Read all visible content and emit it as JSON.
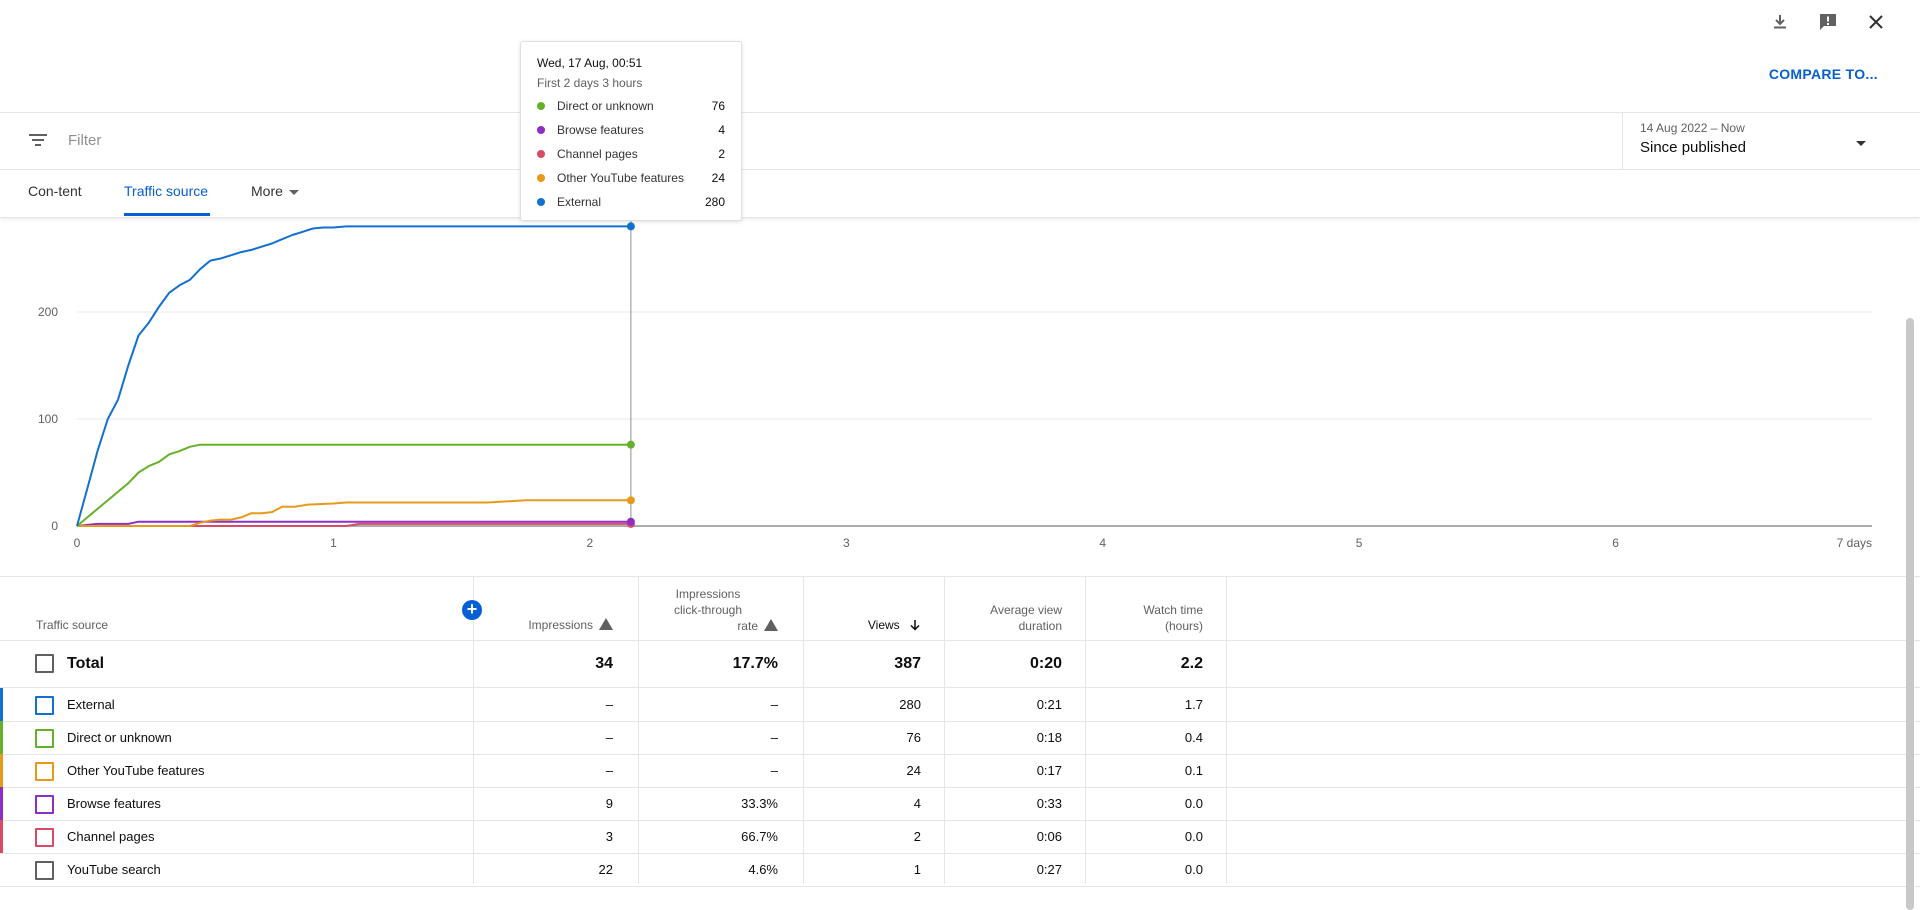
{
  "header": {
    "compare_label": "COMPARE TO...",
    "icons": [
      "download-icon",
      "feedback-icon",
      "close-icon"
    ]
  },
  "filter": {
    "placeholder": "Filter"
  },
  "date": {
    "range": "14 Aug 2022 – Now",
    "label": "Since published"
  },
  "tabs": [
    {
      "label": "Con-tent"
    },
    {
      "label": "Traffic source"
    },
    {
      "label": "More"
    }
  ],
  "tooltip": {
    "title": "Wed, 17 Aug, 00:51",
    "subtitle": "First 2 days 3 hours",
    "rows": [
      {
        "name": "Direct or unknown",
        "value": "76",
        "color": "#65b12b"
      },
      {
        "name": "Browse features",
        "value": "4",
        "color": "#8e2ec7"
      },
      {
        "name": "Channel pages",
        "value": "2",
        "color": "#d94a66"
      },
      {
        "name": "Other YouTube features",
        "value": "24",
        "color": "#e79a1a"
      },
      {
        "name": "External",
        "value": "280",
        "color": "#1170d0"
      }
    ]
  },
  "chart_data": {
    "type": "line",
    "x_ticks": [
      "0",
      "1",
      "2",
      "3",
      "4",
      "5",
      "6",
      "7 days"
    ],
    "y_ticks": [
      "0",
      "100",
      "200"
    ],
    "xlim": [
      0,
      7
    ],
    "ylim": [
      0,
      300
    ],
    "hover_x": 2.16,
    "series": [
      {
        "name": "External",
        "color": "#1170d0",
        "x": [
          0,
          0.04,
          0.08,
          0.12,
          0.16,
          0.2,
          0.24,
          0.28,
          0.32,
          0.36,
          0.4,
          0.44,
          0.48,
          0.52,
          0.56,
          0.6,
          0.64,
          0.68,
          0.72,
          0.76,
          0.8,
          0.84,
          0.88,
          0.92,
          0.96,
          1.0,
          1.05,
          1.2,
          1.5,
          2.16
        ],
        "y": [
          0,
          35,
          70,
          100,
          118,
          150,
          178,
          190,
          205,
          218,
          225,
          230,
          240,
          248,
          250,
          253,
          256,
          258,
          261,
          264,
          268,
          272,
          275,
          278,
          279,
          279,
          280,
          280,
          280,
          280
        ]
      },
      {
        "name": "Direct or unknown",
        "color": "#65b12b",
        "x": [
          0,
          0.1,
          0.2,
          0.24,
          0.28,
          0.32,
          0.36,
          0.4,
          0.44,
          0.48,
          2.16
        ],
        "y": [
          0,
          20,
          40,
          50,
          56,
          60,
          67,
          70,
          74,
          76,
          76
        ]
      },
      {
        "name": "Other YouTube features",
        "color": "#e79a1a",
        "x": [
          0,
          0.44,
          0.48,
          0.52,
          0.56,
          0.6,
          0.64,
          0.68,
          0.72,
          0.76,
          0.8,
          0.85,
          0.9,
          1.0,
          1.05,
          1.6,
          1.75,
          2.16
        ],
        "y": [
          0,
          0,
          3,
          5,
          6,
          6,
          8,
          12,
          12,
          13,
          18,
          18,
          20,
          21,
          22,
          22,
          24,
          24
        ]
      },
      {
        "name": "Browse features",
        "color": "#8e2ec7",
        "x": [
          0,
          0.08,
          0.2,
          0.24,
          2.16
        ],
        "y": [
          0,
          2,
          2,
          4,
          4
        ]
      },
      {
        "name": "Channel pages",
        "color": "#d94a66",
        "x": [
          0,
          1.05,
          1.1,
          2.16
        ],
        "y": [
          0,
          0,
          2,
          2
        ]
      }
    ]
  },
  "table": {
    "headers": {
      "source": "Traffic source",
      "impressions": "Impressions",
      "ctr_line1": "Impressions",
      "ctr_line2": "click-through",
      "ctr_line3": "rate",
      "views": "Views",
      "avd_line1": "Average view",
      "avd_line2": "duration",
      "wt_line1": "Watch time",
      "wt_line2": "(hours)"
    },
    "total": {
      "name": "Total",
      "impressions": "34",
      "ctr": "17.7%",
      "views": "387",
      "avd": "0:20",
      "wt": "2.2"
    },
    "rows": [
      {
        "name": "External",
        "impressions": "–",
        "ctr": "–",
        "views": "280",
        "avd": "0:21",
        "wt": "1.7",
        "color": "#1170d0"
      },
      {
        "name": "Direct or unknown",
        "impressions": "–",
        "ctr": "–",
        "views": "76",
        "avd": "0:18",
        "wt": "0.4",
        "color": "#65b12b"
      },
      {
        "name": "Other YouTube features",
        "impressions": "–",
        "ctr": "–",
        "views": "24",
        "avd": "0:17",
        "wt": "0.1",
        "color": "#e79a1a"
      },
      {
        "name": "Browse features",
        "impressions": "9",
        "ctr": "33.3%",
        "views": "4",
        "avd": "0:33",
        "wt": "0.0",
        "color": "#8e2ec7"
      },
      {
        "name": "Channel pages",
        "impressions": "3",
        "ctr": "66.7%",
        "views": "2",
        "avd": "0:06",
        "wt": "0.0",
        "color": "#d94a66"
      },
      {
        "name": "YouTube search",
        "impressions": "22",
        "ctr": "4.6%",
        "views": "1",
        "avd": "0:27",
        "wt": "0.0",
        "color": "#606060"
      }
    ]
  }
}
